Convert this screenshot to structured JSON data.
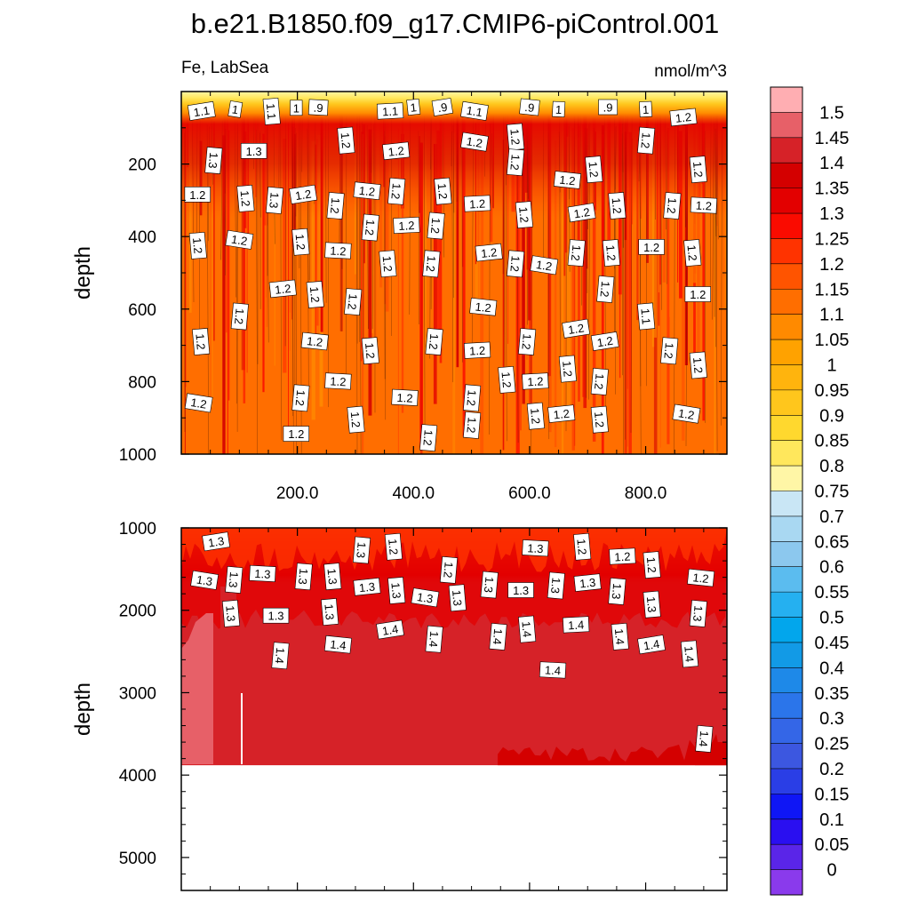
{
  "title": "b.e21.B1850.f09_g17.CMIP6-piControl.001",
  "subtitle_left": "Fe, LabSea",
  "subtitle_right": "nmol/m^3",
  "chart_data": [
    {
      "type": "heatmap",
      "panel": "upper",
      "variable": "Fe",
      "region": "LabSea",
      "units": "nmol/m^3",
      "xlim": [
        0,
        940
      ],
      "ylim": [
        0,
        1000
      ],
      "y_inverted": true,
      "xticks": [
        "200.0",
        "400.0",
        "600.0",
        "800.0"
      ],
      "yticks": [
        "200",
        "400",
        "600",
        "800",
        "1000"
      ],
      "ylabel": "depth",
      "contour_labels": [
        {
          "x": 35,
          "y": 55,
          "t": "1.1"
        },
        {
          "x": 93,
          "y": 50,
          "t": "1"
        },
        {
          "x": 155,
          "y": 55,
          "t": "1.1"
        },
        {
          "x": 236,
          "y": 45,
          "t": ".9"
        },
        {
          "x": 198,
          "y": 46,
          "t": "1"
        },
        {
          "x": 360,
          "y": 55,
          "t": "1.1"
        },
        {
          "x": 400,
          "y": 44,
          "t": "1"
        },
        {
          "x": 450,
          "y": 44,
          "t": ".9"
        },
        {
          "x": 505,
          "y": 55,
          "t": "1.1"
        },
        {
          "x": 600,
          "y": 44,
          "t": ".9"
        },
        {
          "x": 650,
          "y": 50,
          "t": "1"
        },
        {
          "x": 735,
          "y": 44,
          "t": ".9"
        },
        {
          "x": 800,
          "y": 50,
          "t": "1"
        },
        {
          "x": 865,
          "y": 72,
          "t": "1.2"
        },
        {
          "x": 283,
          "y": 135,
          "t": "1.2"
        },
        {
          "x": 505,
          "y": 140,
          "t": "1.2"
        },
        {
          "x": 575,
          "y": 125,
          "t": "1.2"
        },
        {
          "x": 800,
          "y": 135,
          "t": "1.2"
        },
        {
          "x": 125,
          "y": 165,
          "t": "1.3"
        },
        {
          "x": 55,
          "y": 190,
          "t": "1.3"
        },
        {
          "x": 370,
          "y": 165,
          "t": "1.2"
        },
        {
          "x": 575,
          "y": 195,
          "t": "1.2"
        },
        {
          "x": 710,
          "y": 215,
          "t": "1.2"
        },
        {
          "x": 665,
          "y": 245,
          "t": "1.2"
        },
        {
          "x": 890,
          "y": 215,
          "t": "1.2"
        },
        {
          "x": 28,
          "y": 285,
          "t": "1.2"
        },
        {
          "x": 110,
          "y": 295,
          "t": "1.2"
        },
        {
          "x": 160,
          "y": 300,
          "t": "1.3"
        },
        {
          "x": 210,
          "y": 285,
          "t": "1.2"
        },
        {
          "x": 265,
          "y": 315,
          "t": "1.2"
        },
        {
          "x": 320,
          "y": 275,
          "t": "1.2"
        },
        {
          "x": 370,
          "y": 275,
          "t": "1.2"
        },
        {
          "x": 450,
          "y": 275,
          "t": "1.2"
        },
        {
          "x": 510,
          "y": 310,
          "t": "1.2"
        },
        {
          "x": 590,
          "y": 340,
          "t": "1.2"
        },
        {
          "x": 690,
          "y": 335,
          "t": "1.2"
        },
        {
          "x": 750,
          "y": 315,
          "t": "1.2"
        },
        {
          "x": 845,
          "y": 315,
          "t": "1.2"
        },
        {
          "x": 900,
          "y": 315,
          "t": "1.2"
        },
        {
          "x": 325,
          "y": 375,
          "t": "1.2"
        },
        {
          "x": 388,
          "y": 370,
          "t": "1.2"
        },
        {
          "x": 438,
          "y": 370,
          "t": "1.2"
        },
        {
          "x": 28,
          "y": 425,
          "t": "1.2"
        },
        {
          "x": 100,
          "y": 410,
          "t": "1.2"
        },
        {
          "x": 205,
          "y": 415,
          "t": "1.2"
        },
        {
          "x": 270,
          "y": 440,
          "t": "1.2"
        },
        {
          "x": 355,
          "y": 475,
          "t": "1.2"
        },
        {
          "x": 430,
          "y": 475,
          "t": "1.2"
        },
        {
          "x": 530,
          "y": 445,
          "t": "1.2"
        },
        {
          "x": 575,
          "y": 475,
          "t": "1.2"
        },
        {
          "x": 625,
          "y": 480,
          "t": "1.2"
        },
        {
          "x": 680,
          "y": 445,
          "t": "1.2"
        },
        {
          "x": 740,
          "y": 445,
          "t": "1.2"
        },
        {
          "x": 810,
          "y": 430,
          "t": "1.2"
        },
        {
          "x": 880,
          "y": 445,
          "t": "1.2"
        },
        {
          "x": 175,
          "y": 545,
          "t": "1.2"
        },
        {
          "x": 230,
          "y": 560,
          "t": "1.2"
        },
        {
          "x": 295,
          "y": 580,
          "t": "1.2"
        },
        {
          "x": 520,
          "y": 595,
          "t": "1.2"
        },
        {
          "x": 730,
          "y": 545,
          "t": "1.2"
        },
        {
          "x": 890,
          "y": 560,
          "t": "1.2"
        },
        {
          "x": 100,
          "y": 620,
          "t": "1.2"
        },
        {
          "x": 800,
          "y": 620,
          "t": "1.1"
        },
        {
          "x": 680,
          "y": 655,
          "t": "1.2"
        },
        {
          "x": 33,
          "y": 690,
          "t": "1.2"
        },
        {
          "x": 230,
          "y": 690,
          "t": "1.2"
        },
        {
          "x": 325,
          "y": 715,
          "t": "1.2"
        },
        {
          "x": 435,
          "y": 690,
          "t": "1.2"
        },
        {
          "x": 510,
          "y": 715,
          "t": "1.2"
        },
        {
          "x": 595,
          "y": 690,
          "t": "1.2"
        },
        {
          "x": 730,
          "y": 690,
          "t": "1.2"
        },
        {
          "x": 840,
          "y": 715,
          "t": "1.2"
        },
        {
          "x": 890,
          "y": 755,
          "t": "1.2"
        },
        {
          "x": 270,
          "y": 800,
          "t": "1.2"
        },
        {
          "x": 560,
          "y": 795,
          "t": "1.2"
        },
        {
          "x": 610,
          "y": 800,
          "t": "1.2"
        },
        {
          "x": 665,
          "y": 765,
          "t": "1.2"
        },
        {
          "x": 720,
          "y": 800,
          "t": "1.2"
        },
        {
          "x": 30,
          "y": 860,
          "t": "1.2"
        },
        {
          "x": 205,
          "y": 845,
          "t": "1.2"
        },
        {
          "x": 385,
          "y": 845,
          "t": "1.2"
        },
        {
          "x": 500,
          "y": 845,
          "t": "1.2"
        },
        {
          "x": 610,
          "y": 895,
          "t": "1.2"
        },
        {
          "x": 655,
          "y": 890,
          "t": "1.2"
        },
        {
          "x": 720,
          "y": 905,
          "t": "1.2"
        },
        {
          "x": 870,
          "y": 890,
          "t": "1.2"
        },
        {
          "x": 300,
          "y": 905,
          "t": "1.2"
        },
        {
          "x": 500,
          "y": 920,
          "t": "1.2"
        },
        {
          "x": 198,
          "y": 945,
          "t": "1.2"
        },
        {
          "x": 425,
          "y": 955,
          "t": "1.2"
        }
      ]
    },
    {
      "type": "heatmap",
      "panel": "lower",
      "variable": "Fe",
      "region": "LabSea",
      "units": "nmol/m^3",
      "xlim": [
        0,
        940
      ],
      "ylim": [
        1000,
        5400
      ],
      "y_inverted": true,
      "data_bottom_depth": 3880,
      "yticks": [
        "1000",
        "2000",
        "3000",
        "4000",
        "5000"
      ],
      "ylabel": "depth",
      "contour_labels": [
        {
          "x": 60,
          "y": 1170,
          "t": "1.3"
        },
        {
          "x": 310,
          "y": 1270,
          "t": "1.3"
        },
        {
          "x": 365,
          "y": 1230,
          "t": "1.2"
        },
        {
          "x": 610,
          "y": 1250,
          "t": "1.3"
        },
        {
          "x": 690,
          "y": 1230,
          "t": "1.2"
        },
        {
          "x": 760,
          "y": 1350,
          "t": "1.2"
        },
        {
          "x": 810,
          "y": 1450,
          "t": "1.2"
        },
        {
          "x": 460,
          "y": 1510,
          "t": "1.2"
        },
        {
          "x": 40,
          "y": 1640,
          "t": "1.3"
        },
        {
          "x": 90,
          "y": 1630,
          "t": "1.3"
        },
        {
          "x": 140,
          "y": 1560,
          "t": "1.3"
        },
        {
          "x": 210,
          "y": 1590,
          "t": "1.3"
        },
        {
          "x": 260,
          "y": 1590,
          "t": "1.3"
        },
        {
          "x": 320,
          "y": 1720,
          "t": "1.3"
        },
        {
          "x": 370,
          "y": 1760,
          "t": "1.3"
        },
        {
          "x": 420,
          "y": 1850,
          "t": "1.3"
        },
        {
          "x": 475,
          "y": 1850,
          "t": "1.3"
        },
        {
          "x": 530,
          "y": 1690,
          "t": "1.3"
        },
        {
          "x": 585,
          "y": 1760,
          "t": "1.3"
        },
        {
          "x": 645,
          "y": 1700,
          "t": "1.3"
        },
        {
          "x": 700,
          "y": 1670,
          "t": "1.3"
        },
        {
          "x": 750,
          "y": 1770,
          "t": "1.3"
        },
        {
          "x": 810,
          "y": 1930,
          "t": "1.3"
        },
        {
          "x": 895,
          "y": 1610,
          "t": "1.2"
        },
        {
          "x": 85,
          "y": 2040,
          "t": "1.3"
        },
        {
          "x": 163,
          "y": 2070,
          "t": "1.3"
        },
        {
          "x": 255,
          "y": 2020,
          "t": "1.3"
        },
        {
          "x": 890,
          "y": 2040,
          "t": "1.3"
        },
        {
          "x": 360,
          "y": 2240,
          "t": "1.4"
        },
        {
          "x": 435,
          "y": 2350,
          "t": "1.4"
        },
        {
          "x": 270,
          "y": 2420,
          "t": "1.4"
        },
        {
          "x": 545,
          "y": 2320,
          "t": "1.4"
        },
        {
          "x": 595,
          "y": 2230,
          "t": "1.4"
        },
        {
          "x": 680,
          "y": 2180,
          "t": "1.4"
        },
        {
          "x": 755,
          "y": 2320,
          "t": "1.4"
        },
        {
          "x": 810,
          "y": 2420,
          "t": "1.4"
        },
        {
          "x": 875,
          "y": 2530,
          "t": "1.4"
        },
        {
          "x": 170,
          "y": 2550,
          "t": "1.4"
        },
        {
          "x": 640,
          "y": 2730,
          "t": "1.4"
        },
        {
          "x": 900,
          "y": 3560,
          "t": "1.4"
        }
      ]
    }
  ],
  "colorbar": {
    "labels": [
      "1.5",
      "1.45",
      "1.4",
      "1.35",
      "1.3",
      "1.25",
      "1.2",
      "1.15",
      "1.1",
      "1.05",
      "1",
      "0.95",
      "0.9",
      "0.85",
      "0.8",
      "0.75",
      "0.7",
      "0.65",
      "0.6",
      "0.55",
      "0.5",
      "0.45",
      "0.4",
      "0.35",
      "0.3",
      "0.25",
      "0.2",
      "0.15",
      "0.1",
      "0.05",
      "0"
    ],
    "colors": [
      "#FFAEB2",
      "#E76068",
      "#D62228",
      "#D40000",
      "#E30000",
      "#FA0B00",
      "#FF3300",
      "#FF5400",
      "#FF6E00",
      "#FF8A00",
      "#FFA200",
      "#FFB40D",
      "#FFC61C",
      "#FFD82E",
      "#FFE75C",
      "#FFF6A6",
      "#C9E6F5",
      "#A9D8F2",
      "#8CC8EE",
      "#5BBCEF",
      "#25B0F0",
      "#02A6EC",
      "#129AE6",
      "#1E89E8",
      "#2B75EA",
      "#3466E7",
      "#3C57E0",
      "#2A3EE6",
      "#0F16F5",
      "#2A0FF0",
      "#5A25E8",
      "#8A3AEC"
    ]
  }
}
